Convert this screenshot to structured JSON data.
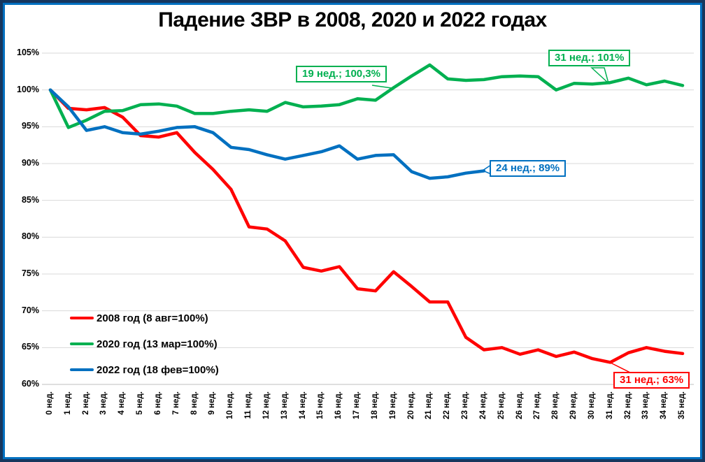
{
  "title": "Падение ЗВР в 2008, 2020 и 2022 годах",
  "colors": {
    "frame_outer": "#17375E",
    "frame_inner": "#0070C0",
    "gridline": "#D9D9D9",
    "axis_line": "#BFBFBF",
    "series_2008": "#FF0000",
    "series_2020": "#00B050",
    "series_2022": "#0070C0"
  },
  "chart_data": {
    "type": "line",
    "title": "Падение ЗВР в 2008, 2020 и 2022 годах",
    "xlabel": "",
    "ylabel": "",
    "ylim": [
      60,
      105
    ],
    "grid": true,
    "legend_position": "middle-left",
    "y_tick_labels": [
      "105%",
      "100%",
      "95%",
      "90%",
      "85%",
      "80%",
      "75%",
      "70%",
      "65%",
      "60%"
    ],
    "y_tick_values": [
      105,
      100,
      95,
      90,
      85,
      80,
      75,
      70,
      65,
      60
    ],
    "categories": [
      "0 нед.",
      "1 нед.",
      "2 нед.",
      "3 нед.",
      "4 нед.",
      "5 нед.",
      "6 нед.",
      "7 нед.",
      "8 нед.",
      "9 нед.",
      "10 нед.",
      "11 нед.",
      "12 нед.",
      "13 нед.",
      "14 нед.",
      "15 нед.",
      "16 нед.",
      "17 нед.",
      "18 нед.",
      "19 нед.",
      "20 нед.",
      "21 нед.",
      "22 нед.",
      "23 нед.",
      "24 нед.",
      "25 нед.",
      "26 нед.",
      "27 нед.",
      "28 нед.",
      "29 нед.",
      "30 нед.",
      "31 нед.",
      "32 нед.",
      "33 нед.",
      "34 нед.",
      "35 нед."
    ],
    "series": [
      {
        "name": "2008 год (8 авг=100%)",
        "color": "#FF0000",
        "values": [
          100,
          97.5,
          97.3,
          97.6,
          96.3,
          93.8,
          93.6,
          94.2,
          91.5,
          89.2,
          86.5,
          81.4,
          81.1,
          79.5,
          75.9,
          75.4,
          76.0,
          73.0,
          72.7,
          75.3,
          73.3,
          71.2,
          71.2,
          66.4,
          64.7,
          65.0,
          64.1,
          64.7,
          63.8,
          64.4,
          63.5,
          63.0,
          64.3,
          65.0,
          64.5,
          64.2
        ]
      },
      {
        "name": "2020 год (13 мар=100%)",
        "color": "#00B050",
        "values": [
          100,
          94.9,
          95.9,
          97.1,
          97.2,
          98.0,
          98.1,
          97.8,
          96.8,
          96.8,
          97.1,
          97.3,
          97.1,
          98.3,
          97.7,
          97.8,
          98.0,
          98.8,
          98.6,
          100.3,
          101.9,
          103.4,
          101.5,
          101.3,
          101.4,
          101.8,
          101.9,
          101.8,
          100.0,
          100.9,
          100.8,
          101.0,
          101.6,
          100.7,
          101.2,
          100.6
        ]
      },
      {
        "name": "2022 год (18 фев=100%)",
        "color": "#0070C0",
        "values": [
          100,
          97.7,
          94.5,
          95.0,
          94.2,
          94.0,
          94.4,
          94.9,
          95.0,
          94.2,
          92.2,
          91.9,
          91.2,
          90.6,
          91.1,
          91.6,
          92.4,
          90.6,
          91.1,
          91.2,
          88.9,
          88.0,
          88.2,
          88.7,
          89.0
        ]
      }
    ],
    "annotations": [
      {
        "text": "19 нед.; 100,3%",
        "series_index": 1,
        "week": 19,
        "value": 100.3
      },
      {
        "text": "31 нед.; 101%",
        "series_index": 1,
        "week": 31,
        "value": 101
      },
      {
        "text": "24 нед.; 89%",
        "series_index": 2,
        "week": 24,
        "value": 89
      },
      {
        "text": "31 нед.; 63%",
        "series_index": 0,
        "week": 31,
        "value": 63
      }
    ]
  }
}
